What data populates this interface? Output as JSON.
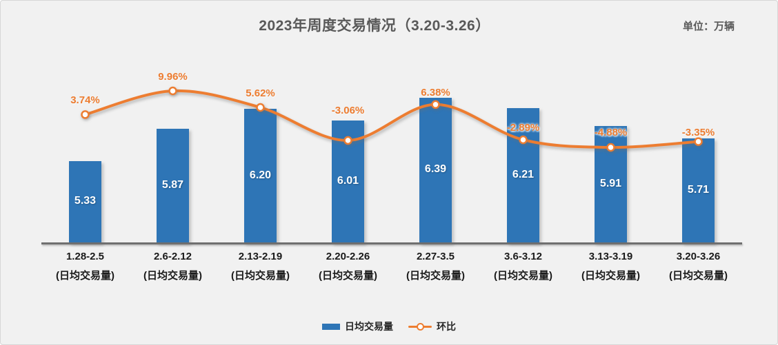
{
  "chart_data": {
    "type": "combo-bar-line",
    "title": "2023年周度交易情况（3.20-3.26）",
    "unit_label": "单位：万辆",
    "categories": [
      "1.28-2.5",
      "2.6-2.12",
      "2.13-2.19",
      "2.20-2.26",
      "2.27-3.5",
      "3.6-3.12",
      "3.13-3.19",
      "3.20-3.26"
    ],
    "category_sublabel": "(日均交易量)",
    "series": [
      {
        "name": "日均交易量",
        "type": "bar",
        "color": "#2E75B6",
        "values": [
          5.33,
          5.87,
          6.2,
          6.01,
          6.39,
          6.21,
          5.91,
          5.71
        ],
        "labels": [
          "5.33",
          "5.87",
          "6.20",
          "6.01",
          "6.39",
          "6.21",
          "5.91",
          "5.71"
        ]
      },
      {
        "name": "环比",
        "type": "line",
        "color": "#ED7D31",
        "marker": "circle-white-fill-orange-stroke",
        "values": [
          3.74,
          9.96,
          5.62,
          -3.06,
          6.38,
          -2.89,
          -4.88,
          -3.35
        ],
        "labels": [
          "3.74%",
          "9.96%",
          "5.62%",
          "-3.06%",
          "6.38%",
          "-2.89%",
          "-4.88%",
          "-3.35%"
        ]
      }
    ],
    "legend_position": "bottom",
    "grid": "off",
    "value_axis_visible": false,
    "bar_axis_range_estimate": [
      4.0,
      6.6
    ]
  },
  "colors": {
    "background": "#F1F1F1",
    "panel_border": "#D6D6D6",
    "title_text": "#595959",
    "axis_line": "#6F6F6F",
    "bar_fill": "#2E75B6",
    "line_stroke": "#ED7D31",
    "bar_value_text": "#FFFFFF",
    "category_text": "#1A1A1A"
  }
}
